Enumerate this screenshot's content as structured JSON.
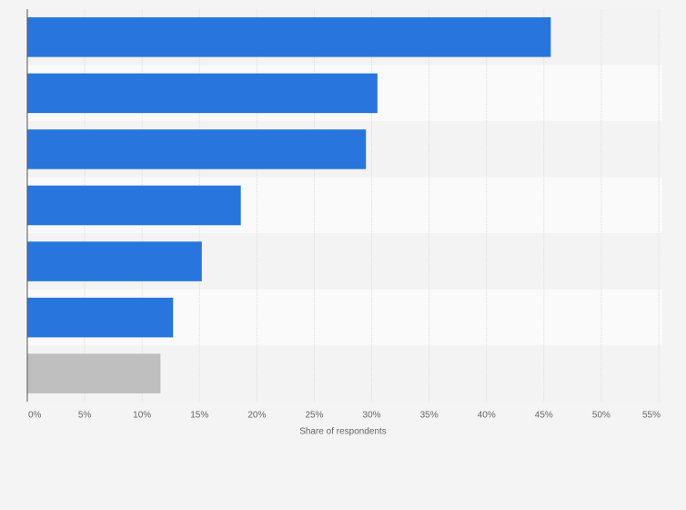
{
  "chart_data": {
    "type": "hbar",
    "categories": [
      null,
      null,
      null,
      null,
      null,
      null,
      null
    ],
    "values": [
      45.6,
      30.5,
      29.5,
      18.6,
      15.2,
      12.7,
      11.6
    ],
    "colors": [
      "#2876dd",
      "#2876dd",
      "#2876dd",
      "#2876dd",
      "#2876dd",
      "#2876dd",
      "#bfbfbf"
    ],
    "x_label": "Share of respondents",
    "xlim": [
      0,
      55
    ],
    "xticks": [
      {
        "value": 0,
        "label": "0%"
      },
      {
        "value": 5,
        "label": "5%"
      },
      {
        "value": 10,
        "label": "10%"
      },
      {
        "value": 15,
        "label": "15%"
      },
      {
        "value": 20,
        "label": "20%"
      },
      {
        "value": 25,
        "label": "25%"
      },
      {
        "value": 30,
        "label": "30%"
      },
      {
        "value": 35,
        "label": "35%"
      },
      {
        "value": 40,
        "label": "40%"
      },
      {
        "value": 45,
        "label": "45%"
      },
      {
        "value": 50,
        "label": "50%"
      },
      {
        "value": 55,
        "label": "55%"
      }
    ],
    "grid": true
  }
}
